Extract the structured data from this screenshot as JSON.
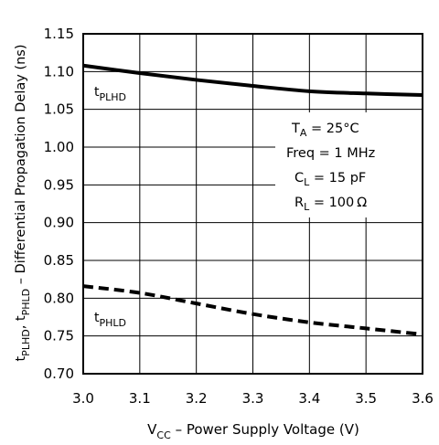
{
  "chart_data": {
    "type": "line",
    "xlabel": {
      "pre": "V",
      "sub": "CC",
      "post": " – Power Supply Voltage (V)"
    },
    "ylabel": {
      "s1": "t",
      "s1sub": "PLHD",
      "s2": ", t",
      "s2sub": "PHLD",
      "s3": " – Differential Propagation Delay (ns)"
    },
    "xlim": [
      3.0,
      3.6
    ],
    "ylim": [
      0.7,
      1.15
    ],
    "x_ticks": [
      "3.0",
      "3.1",
      "3.2",
      "3.3",
      "3.4",
      "3.5",
      "3.6"
    ],
    "y_ticks": [
      "0.70",
      "0.75",
      "0.80",
      "0.85",
      "0.90",
      "0.95",
      "1.00",
      "1.05",
      "1.10",
      "1.15"
    ],
    "grid": true,
    "series": [
      {
        "name": "tPLHD",
        "label_main": "t",
        "label_sub": "PLHD",
        "style": "solid",
        "x": [
          3.0,
          3.1,
          3.2,
          3.3,
          3.4,
          3.5,
          3.6
        ],
        "y": [
          1.108,
          1.098,
          1.089,
          1.081,
          1.074,
          1.071,
          1.069
        ]
      },
      {
        "name": "tPHLD",
        "label_main": "t",
        "label_sub": "PHLD",
        "style": "dashed",
        "x": [
          3.0,
          3.1,
          3.2,
          3.3,
          3.4,
          3.5,
          3.6
        ],
        "y": [
          0.816,
          0.807,
          0.793,
          0.779,
          0.768,
          0.76,
          0.752
        ]
      }
    ],
    "annotation": {
      "line1": {
        "a": "T",
        "sub": "A",
        "b": " = 25°C"
      },
      "line2": "Freq = 1 MHz",
      "line3": {
        "a": "C",
        "sub": "L",
        "b": " = 15 pF"
      },
      "line4": {
        "a": "R",
        "sub": "L",
        "b": " = 100 Ω"
      }
    }
  }
}
